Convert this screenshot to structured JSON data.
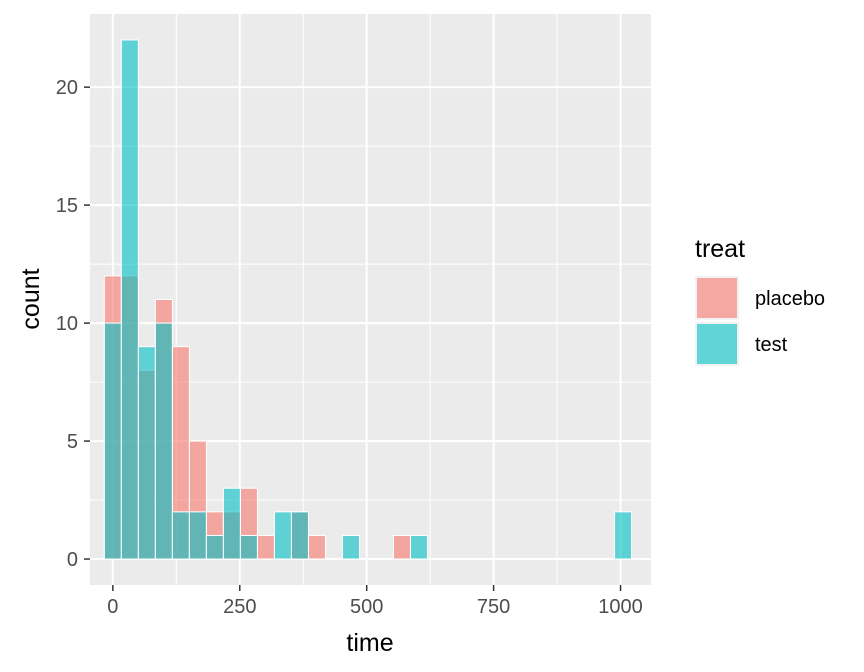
{
  "chart_data": {
    "type": "histogram",
    "xlabel": "time",
    "ylabel": "count",
    "xlim": [
      -45,
      1060
    ],
    "ylim": [
      -1.1,
      23.1
    ],
    "x_ticks": [
      0,
      250,
      500,
      750,
      1000
    ],
    "x_tick_labels": [
      "0",
      "250",
      "500",
      "750",
      "1000"
    ],
    "y_ticks": [
      0,
      5,
      10,
      15,
      20
    ],
    "y_tick_labels": [
      "0",
      "5",
      "10",
      "15",
      "20"
    ],
    "bin_width": 33.5,
    "bin_centers": [
      0,
      33.5,
      67,
      100.5,
      134,
      167.5,
      201,
      234.5,
      268,
      301.5,
      335,
      368.5,
      402,
      435.5,
      469,
      502.5,
      536,
      569.5,
      603,
      1005
    ],
    "legend": {
      "title": "treat",
      "position": "right",
      "entries": [
        "placebo",
        "test"
      ]
    },
    "series": [
      {
        "name": "placebo",
        "color": "#F8766D",
        "values": [
          12,
          12,
          8,
          11,
          9,
          5,
          2,
          2,
          3,
          1,
          0,
          2,
          1,
          0,
          0,
          0,
          0,
          1,
          0,
          0
        ]
      },
      {
        "name": "test",
        "color": "#00BFC4",
        "values": [
          10,
          22,
          9,
          10,
          2,
          2,
          1,
          3,
          1,
          0,
          2,
          2,
          0,
          0,
          1,
          0,
          0,
          0,
          1,
          2
        ]
      }
    ]
  }
}
